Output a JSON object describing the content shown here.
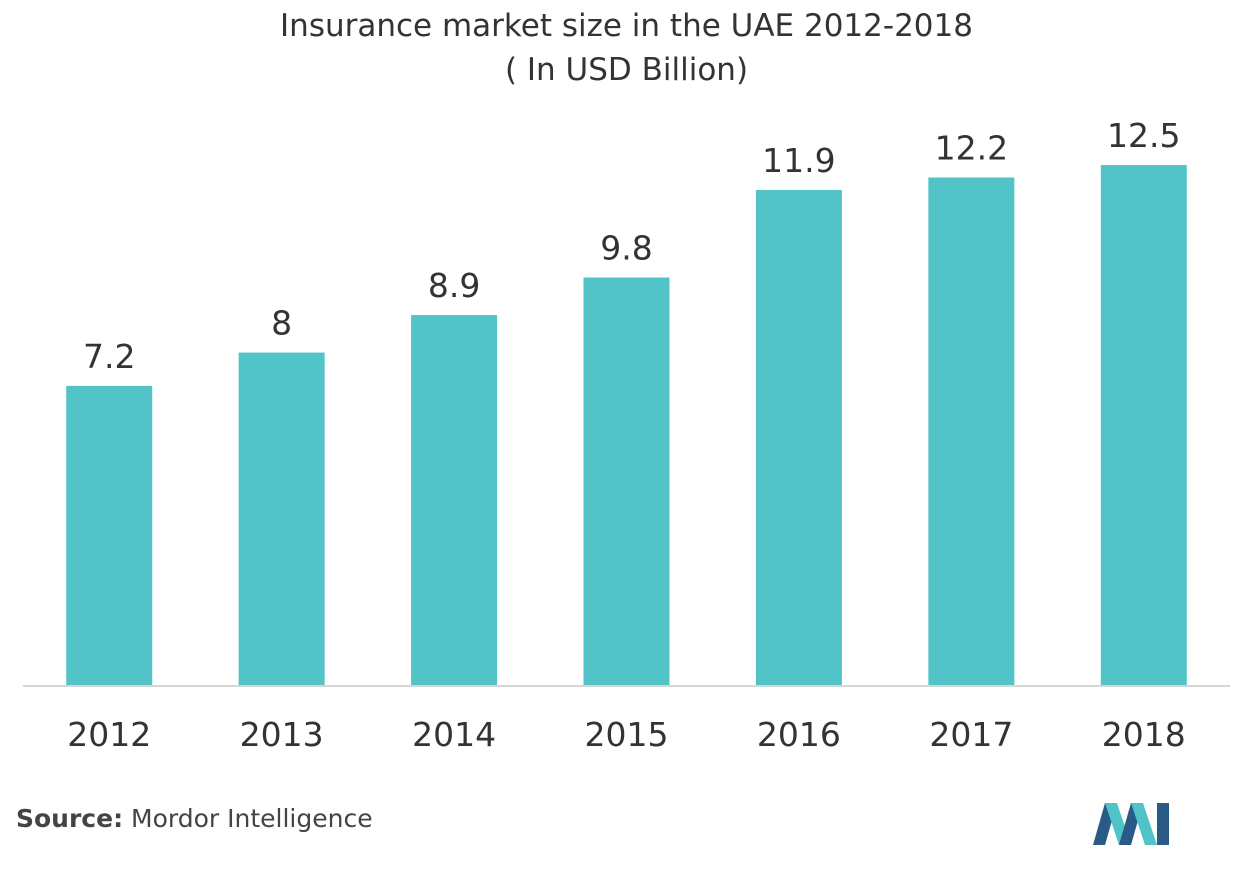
{
  "title_line1": "Insurance market size in the UAE 2012-2018",
  "title_line2": "( In USD Billion)",
  "source_label": "Source:",
  "source_text": "Mordor Intelligence",
  "logo_icon": "mordor-intelligence-logo",
  "colors": {
    "bar": "#52c4c8",
    "axis": "#d6d6d6",
    "text": "#333333",
    "logo_dark": "#2a5a86",
    "logo_light": "#4fc3c8"
  },
  "chart_data": {
    "type": "bar",
    "title": "Insurance market size in the UAE 2012-2018",
    "subtitle": "( In USD Billion)",
    "categories": [
      "2012",
      "2013",
      "2014",
      "2015",
      "2016",
      "2017",
      "2018"
    ],
    "values": [
      7.2,
      8,
      8.9,
      9.8,
      11.9,
      12.2,
      12.5
    ],
    "value_labels": [
      "7.2",
      "8",
      "8.9",
      "9.8",
      "11.9",
      "12.2",
      "12.5"
    ],
    "xlabel": "",
    "ylabel": "",
    "ylim": [
      0,
      12.5
    ],
    "grid": false,
    "legend": "none"
  }
}
